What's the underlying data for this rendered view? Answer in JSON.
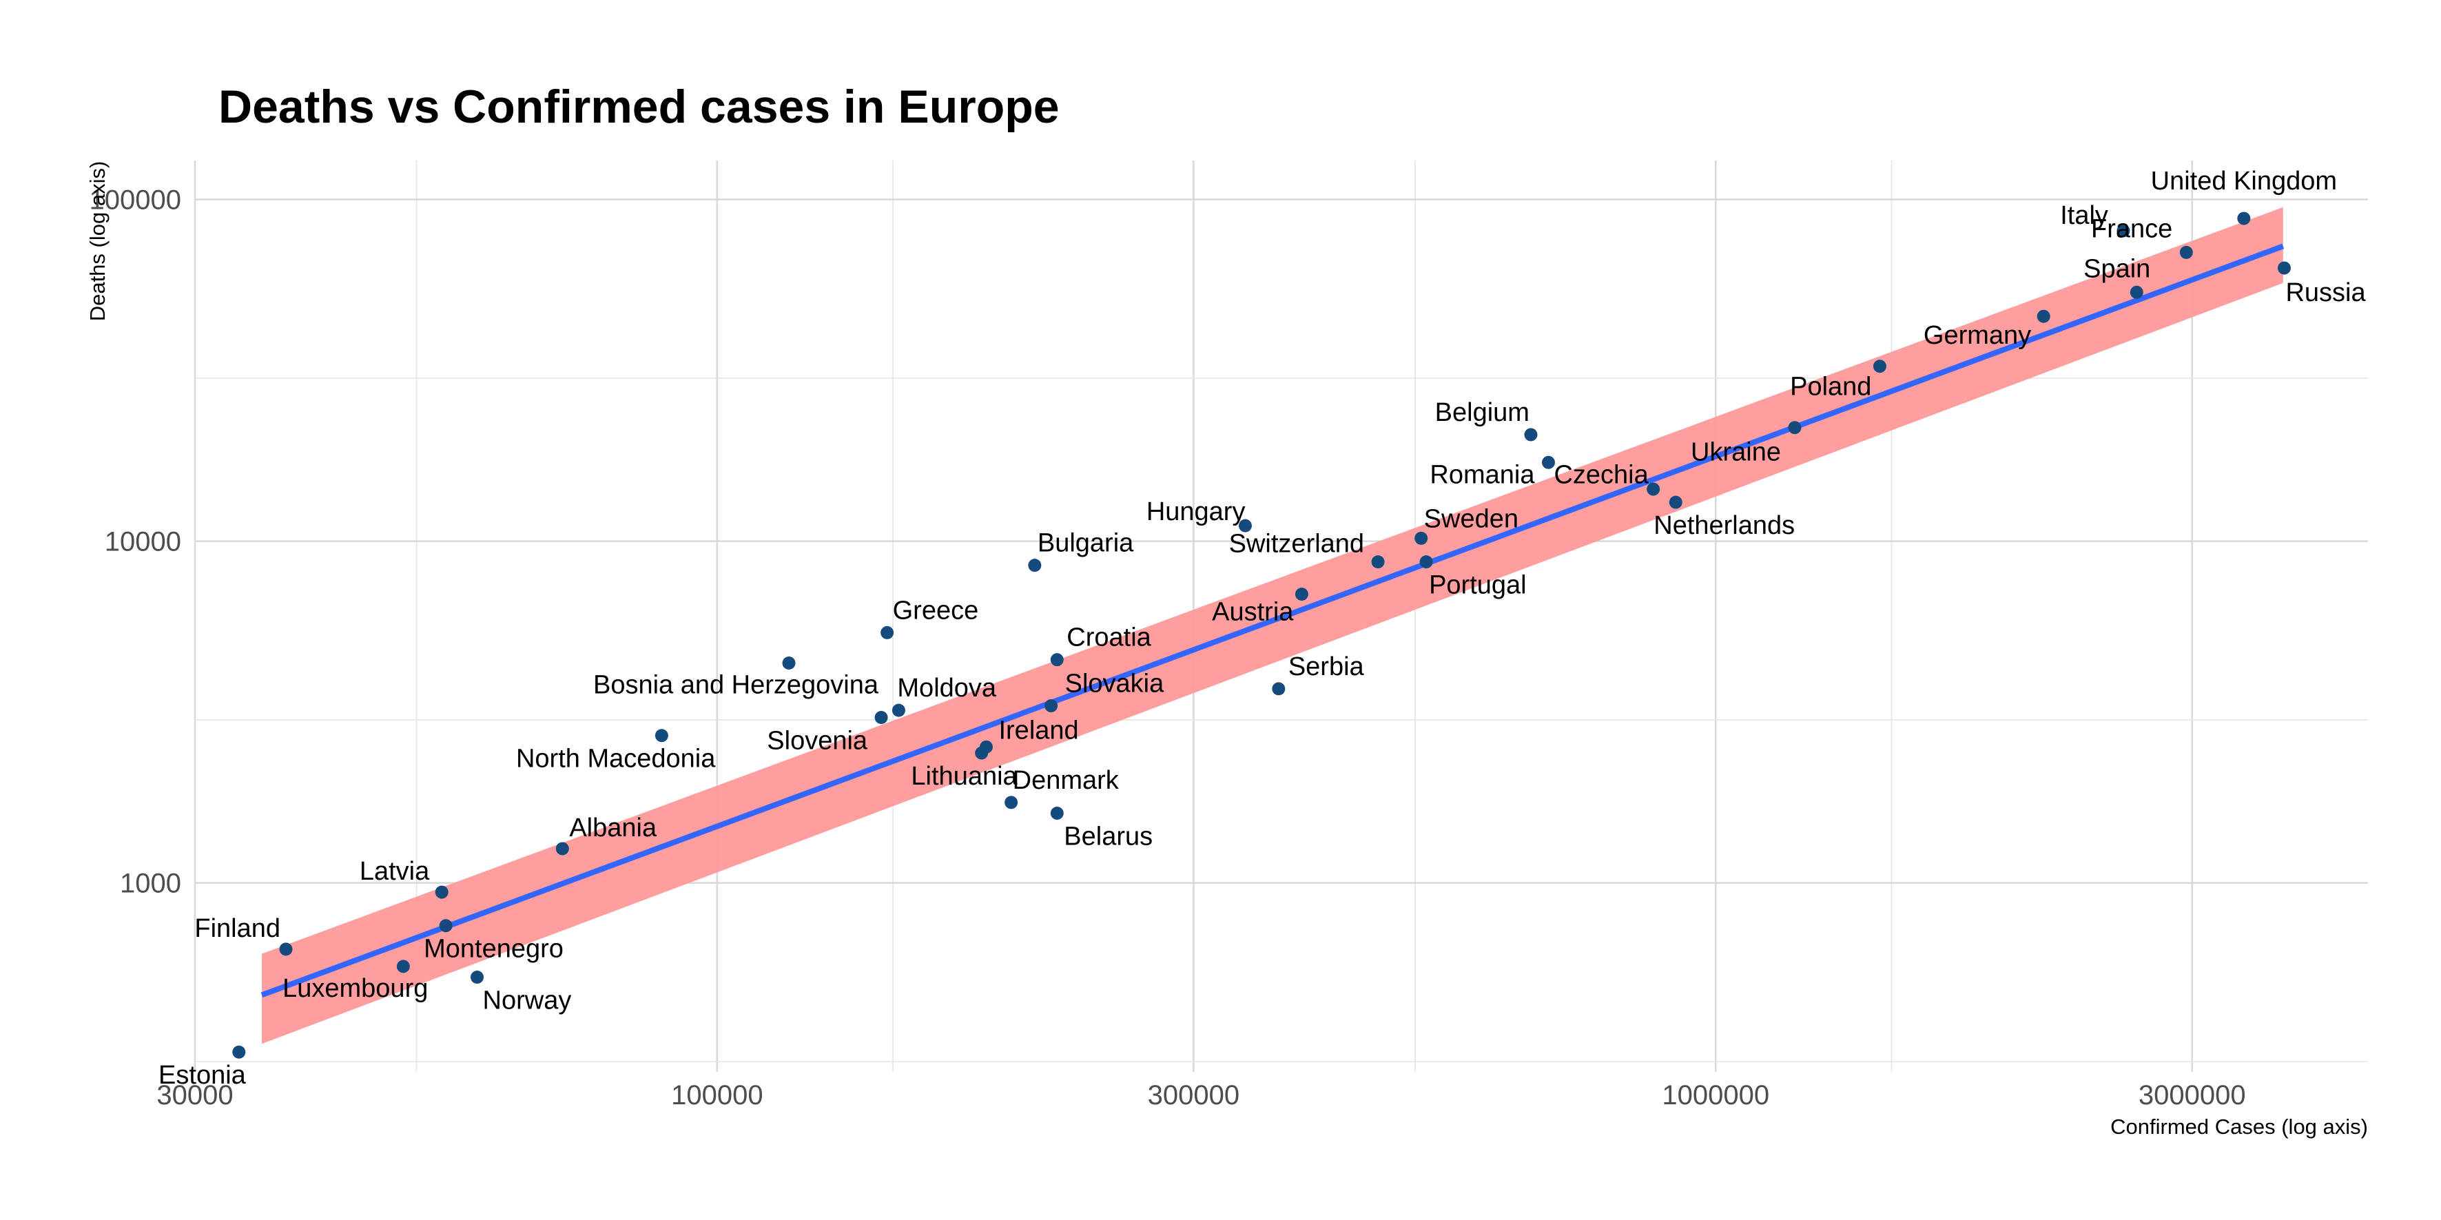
{
  "chart_data": {
    "type": "scatter",
    "title": "Deaths vs Confirmed cases in Europe",
    "xlabel": "Confirmed Cases (log axis)",
    "ylabel": "Deaths (log axis)",
    "x_scale": "log",
    "y_scale": "log",
    "xlim": [
      30000,
      4500000
    ],
    "ylim": [
      280,
      130000
    ],
    "x_ticks": [
      {
        "value": 30000,
        "label": "30000"
      },
      {
        "value": 100000,
        "label": "100000"
      },
      {
        "value": 300000,
        "label": "300000"
      },
      {
        "value": 1000000,
        "label": "1000000"
      },
      {
        "value": 3000000,
        "label": "3000000"
      }
    ],
    "y_ticks": [
      {
        "value": 1000,
        "label": "1000"
      },
      {
        "value": 10000,
        "label": "10000"
      },
      {
        "value": 100000,
        "label": "100000"
      }
    ],
    "grid": true,
    "colors": {
      "points": "#154a7e",
      "fit_line": "#3366ff",
      "band": "#ff9999"
    },
    "fit": {
      "x0": 35000,
      "y0": 470,
      "x1": 3700000,
      "y1": 73000,
      "band_lower_ratio0": 0.72,
      "band_upper_ratio0": 1.32,
      "band_lower_ratio1": 0.78,
      "band_upper_ratio1": 1.3
    },
    "points": [
      {
        "country": "United Kingdom",
        "x": 3380000,
        "y": 88000,
        "anchor": "middle",
        "dx": 0,
        "dy": -42
      },
      {
        "country": "Italy",
        "x": 2560000,
        "y": 81000,
        "anchor": "end",
        "dx": -22,
        "dy": -10
      },
      {
        "country": "France",
        "x": 2960000,
        "y": 70000,
        "anchor": "end",
        "dx": -20,
        "dy": -22
      },
      {
        "country": "Spain",
        "x": 2640000,
        "y": 53500,
        "anchor": "end",
        "dx": 20,
        "dy": -22
      },
      {
        "country": "Russia",
        "x": 3710000,
        "y": 63000,
        "anchor": "start",
        "dx": 2,
        "dy": 48
      },
      {
        "country": "Germany",
        "x": 2130000,
        "y": 45500,
        "anchor": "end",
        "dx": -18,
        "dy": 40
      },
      {
        "country": "Poland",
        "x": 1460000,
        "y": 32500,
        "anchor": "end",
        "dx": -12,
        "dy": 42
      },
      {
        "country": "Belgium",
        "x": 653000,
        "y": 20500,
        "anchor": "end",
        "dx": -2,
        "dy": -20
      },
      {
        "country": "Czechia",
        "x": 680000,
        "y": 17000,
        "anchor": "start",
        "dx": 8,
        "dy": 30
      },
      {
        "country": "Romania",
        "x": 680000,
        "y": 17000,
        "anchor": "end",
        "dx": -20,
        "dy": 30
      },
      {
        "country": "Ukraine",
        "x": 1200000,
        "y": 21500,
        "anchor": "end",
        "dx": -20,
        "dy": 48
      },
      {
        "country": "Netherlands",
        "x": 866000,
        "y": 14200,
        "anchor": "start",
        "dx": -4,
        "dy": 0
      },
      {
        "country": "Netherlands_pt2",
        "x": 912000,
        "y": 13000,
        "anchor": "start",
        "dx": -32,
        "dy": 46,
        "text": "Netherlands"
      },
      {
        "country": "Sweden",
        "x": 507000,
        "y": 10200,
        "anchor": "start",
        "dx": 4,
        "dy": -16
      },
      {
        "country": "Hungary",
        "x": 338000,
        "y": 11100,
        "anchor": "end",
        "dx": 0,
        "dy": -8
      },
      {
        "country": "Switzerland",
        "x": 459000,
        "y": 8700,
        "anchor": "end",
        "dx": -20,
        "dy": -14
      },
      {
        "country": "Portugal",
        "x": 513000,
        "y": 8700,
        "anchor": "start",
        "dx": 4,
        "dy": 46
      },
      {
        "country": "Austria",
        "x": 385000,
        "y": 7000,
        "anchor": "end",
        "dx": -12,
        "dy": 38
      },
      {
        "country": "Bulgaria",
        "x": 208000,
        "y": 8500,
        "anchor": "start",
        "dx": 4,
        "dy": -20
      },
      {
        "country": "Greece",
        "x": 148000,
        "y": 5400,
        "anchor": "start",
        "dx": 8,
        "dy": -20
      },
      {
        "country": "Bosnia and Herzegovina",
        "x": 118000,
        "y": 4400,
        "anchor": "end",
        "dx": 130,
        "dy": 44
      },
      {
        "country": "Croatia",
        "x": 219000,
        "y": 4500,
        "anchor": "start",
        "dx": 14,
        "dy": -20
      },
      {
        "country": "Moldova",
        "x": 152000,
        "y": 3200,
        "anchor": "start",
        "dx": -2,
        "dy": -20
      },
      {
        "country": "Slovakia",
        "x": 216000,
        "y": 3300,
        "anchor": "start",
        "dx": 20,
        "dy": -20
      },
      {
        "country": "Serbia",
        "x": 365000,
        "y": 3700,
        "anchor": "start",
        "dx": 14,
        "dy": -20
      },
      {
        "country": "Slovenia",
        "x": 146000,
        "y": 3050,
        "anchor": "end",
        "dx": -20,
        "dy": 46
      },
      {
        "country": "Ireland",
        "x": 186000,
        "y": 2500,
        "anchor": "start",
        "dx": 18,
        "dy": -12
      },
      {
        "country": "North Macedonia",
        "x": 88000,
        "y": 2700,
        "anchor": "end",
        "dx": 78,
        "dy": 46
      },
      {
        "country": "Lithuania",
        "x": 184000,
        "y": 2400,
        "anchor": "end",
        "dx": 52,
        "dy": 46
      },
      {
        "country": "Denmark",
        "x": 197000,
        "y": 1720,
        "anchor": "start",
        "dx": 2,
        "dy": -20
      },
      {
        "country": "Belarus",
        "x": 219000,
        "y": 1600,
        "anchor": "start",
        "dx": 10,
        "dy": 46
      },
      {
        "country": "Albania",
        "x": 70000,
        "y": 1260,
        "anchor": "start",
        "dx": 10,
        "dy": -18
      },
      {
        "country": "Latvia",
        "x": 53000,
        "y": 940,
        "anchor": "end",
        "dx": -18,
        "dy": -18
      },
      {
        "country": "Montenegro",
        "x": 53500,
        "y": 750,
        "anchor": "start",
        "dx": -32,
        "dy": 46
      },
      {
        "country": "Finland",
        "x": 37000,
        "y": 640,
        "anchor": "end",
        "dx": -8,
        "dy": -18
      },
      {
        "country": "Luxembourg",
        "x": 48500,
        "y": 570,
        "anchor": "end",
        "dx": 36,
        "dy": 44
      },
      {
        "country": "Norway",
        "x": 57500,
        "y": 530,
        "anchor": "start",
        "dx": 8,
        "dy": 46
      },
      {
        "country": "Estonia",
        "x": 33200,
        "y": 320,
        "anchor": "end",
        "dx": 10,
        "dy": 46
      }
    ]
  }
}
